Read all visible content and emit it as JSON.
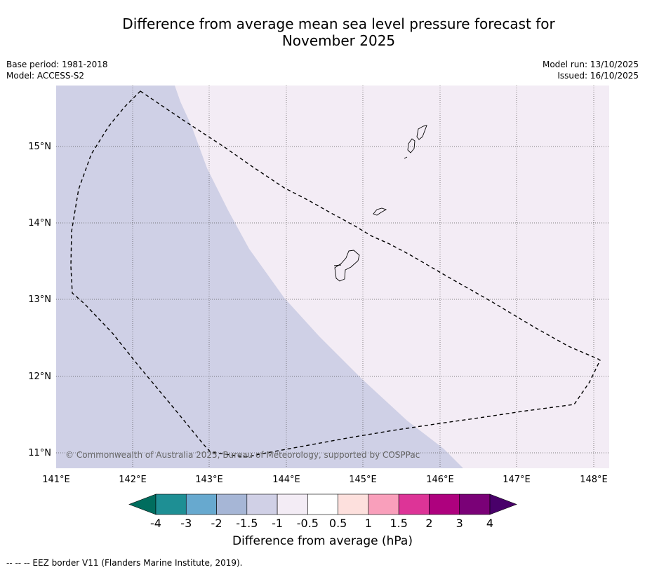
{
  "title": {
    "line1": "Difference from average mean sea level pressure forecast for",
    "line2": "November 2025"
  },
  "meta": {
    "base_period": "Base period: 1981-2018",
    "model": "Model: ACCESS-S2",
    "model_run": "Model run: 13/10/2025",
    "issued": "Issued: 16/10/2025"
  },
  "map": {
    "lon_labels": [
      "141°E",
      "142°E",
      "143°E",
      "144°E",
      "145°E",
      "146°E",
      "147°E",
      "148°E"
    ],
    "lat_labels": [
      "15°N",
      "14°N",
      "13°N",
      "12°N",
      "11°N"
    ],
    "copyright": "© Commonwealth of Australia 2025, Bureau of Meteorology, supported by COSPPac",
    "colors": {
      "minus_1_5_to_minus_1": "#cfd0e6",
      "minus_0_5_to_0": "#f3ecf5",
      "coastline": "#000000",
      "eez_border": "#000000"
    }
  },
  "colorbar": {
    "labels": [
      "-4",
      "-3",
      "-2",
      "-1.5",
      "-1",
      "-0.5",
      "0.5",
      "1",
      "1.5",
      "2",
      "3",
      "4"
    ],
    "colors": [
      "#006d5e",
      "#1e8f94",
      "#67a9cf",
      "#a6b6d6",
      "#d0d0e6",
      "#f3ecf5",
      "#ffffff",
      "#fde0dd",
      "#f99fbb",
      "#dd3497",
      "#ae017e",
      "#7a0177",
      "#49006a"
    ],
    "title": "Difference from average (hPa)"
  },
  "footer": "--  --  -- EEZ border V11 (Flanders Marine Institute, 2019)."
}
